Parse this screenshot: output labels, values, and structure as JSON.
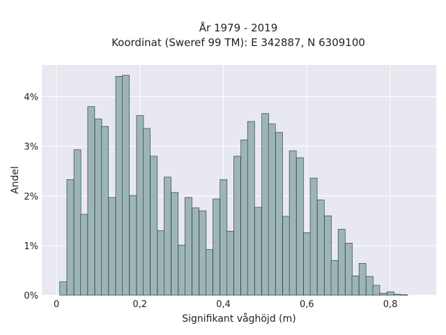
{
  "chart_data": {
    "type": "bar",
    "title_lines": [
      "År 1979 - 2019",
      "Koordinat (Sweref 99 TM): E 342887, N 6309100"
    ],
    "xlabel": "Signifikant våghöjd (m)",
    "ylabel": "Andel",
    "xlim": [
      -0.035,
      0.91
    ],
    "ylim": [
      0,
      0.0464
    ],
    "x_ticks": [
      0,
      0.2,
      0.4,
      0.6,
      0.8
    ],
    "x_tick_labels": [
      "0",
      "0,2",
      "0,4",
      "0,6",
      "0,8"
    ],
    "y_ticks": [
      0,
      0.01,
      0.02,
      0.03,
      0.04
    ],
    "y_tick_labels": [
      "0%",
      "1%",
      "2%",
      "3%",
      "4%"
    ],
    "bin_width": 0.0167,
    "bins_start": [
      0.008,
      0.025,
      0.042,
      0.058,
      0.075,
      0.092,
      0.108,
      0.125,
      0.142,
      0.158,
      0.175,
      0.192,
      0.208,
      0.225,
      0.242,
      0.258,
      0.275,
      0.292,
      0.308,
      0.325,
      0.342,
      0.358,
      0.375,
      0.392,
      0.408,
      0.425,
      0.442,
      0.458,
      0.475,
      0.492,
      0.508,
      0.525,
      0.542,
      0.558,
      0.575,
      0.592,
      0.608,
      0.625,
      0.642,
      0.658,
      0.675,
      0.692,
      0.708,
      0.725,
      0.742,
      0.758,
      0.775,
      0.792,
      0.808,
      0.825,
      0.842
    ],
    "values": [
      0.0027,
      0.0233,
      0.0293,
      0.0163,
      0.038,
      0.0355,
      0.034,
      0.0197,
      0.0441,
      0.0443,
      0.0201,
      0.0362,
      0.0336,
      0.028,
      0.013,
      0.0238,
      0.0207,
      0.0101,
      0.0197,
      0.0176,
      0.017,
      0.0092,
      0.0194,
      0.0233,
      0.0129,
      0.028,
      0.0313,
      0.035,
      0.0177,
      0.0366,
      0.0345,
      0.0328,
      0.0159,
      0.0291,
      0.0277,
      0.0126,
      0.0236,
      0.0192,
      0.016,
      0.007,
      0.0133,
      0.0105,
      0.0039,
      0.0064,
      0.0038,
      0.002,
      0.0004,
      0.0007,
      0.0002,
      0.0001,
      0.0
    ],
    "grid": true,
    "legend": "none",
    "colors": {
      "bar_fill": "#9db5b5",
      "bar_stroke": "#2f4343",
      "plot_background": "#e8e8f1",
      "grid": "#ffffff"
    }
  }
}
